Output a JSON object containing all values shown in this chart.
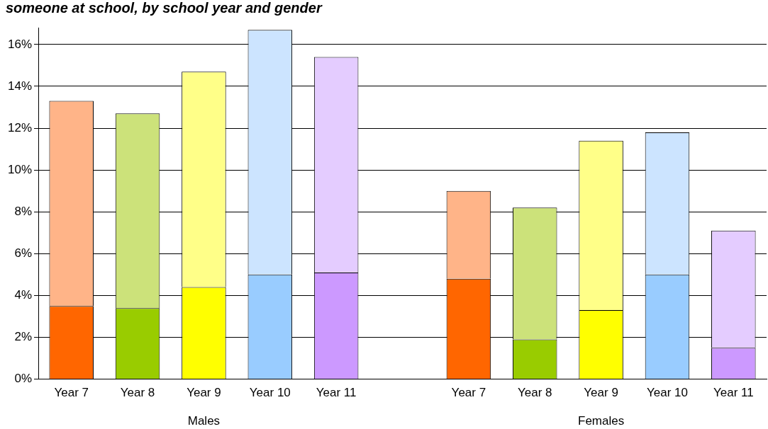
{
  "chart_data": {
    "type": "bar",
    "title": "someone at school, by school year and gender",
    "categories": [
      "Year 7",
      "Year 8",
      "Year 9",
      "Year 10",
      "Year 11",
      null,
      "Year 7",
      "Year 8",
      "Year 9",
      "Year 10",
      "Year 11"
    ],
    "stacked": true,
    "series": [
      {
        "colors": [
          "#ff6600",
          "#99cc00",
          "#ffff00",
          "#99ccff",
          "#cc99ff",
          null,
          "#ff6600",
          "#99cc00",
          "#ffff00",
          "#99ccff",
          "#cc99ff"
        ],
        "values": [
          3.5,
          3.4,
          4.4,
          5.0,
          5.1,
          null,
          4.8,
          1.9,
          3.3,
          5.0,
          1.5
        ]
      },
      {
        "colors": [
          "#ffb488",
          "#cce27a",
          "#ffff88",
          "#cce4ff",
          "#e4ccff",
          null,
          "#ffb488",
          "#cce27a",
          "#ffff88",
          "#cce4ff",
          "#e4ccff"
        ],
        "values": [
          9.8,
          9.3,
          10.3,
          11.7,
          10.3,
          null,
          4.2,
          6.3,
          8.1,
          6.8,
          5.6
        ]
      }
    ],
    "ylim": [
      0,
      16.8
    ],
    "yticks": [
      {
        "value": 0,
        "label": "0%"
      },
      {
        "value": 2,
        "label": "2%"
      },
      {
        "value": 4,
        "label": "4%"
      },
      {
        "value": 6,
        "label": "6%"
      },
      {
        "value": 8,
        "label": "8%"
      },
      {
        "value": 10,
        "label": "10%"
      },
      {
        "value": 12,
        "label": "12%"
      },
      {
        "value": 14,
        "label": "14%"
      },
      {
        "value": 16,
        "label": "16%"
      }
    ],
    "grid": "y",
    "legend": false,
    "annotations": [
      "Males",
      "Females"
    ]
  }
}
